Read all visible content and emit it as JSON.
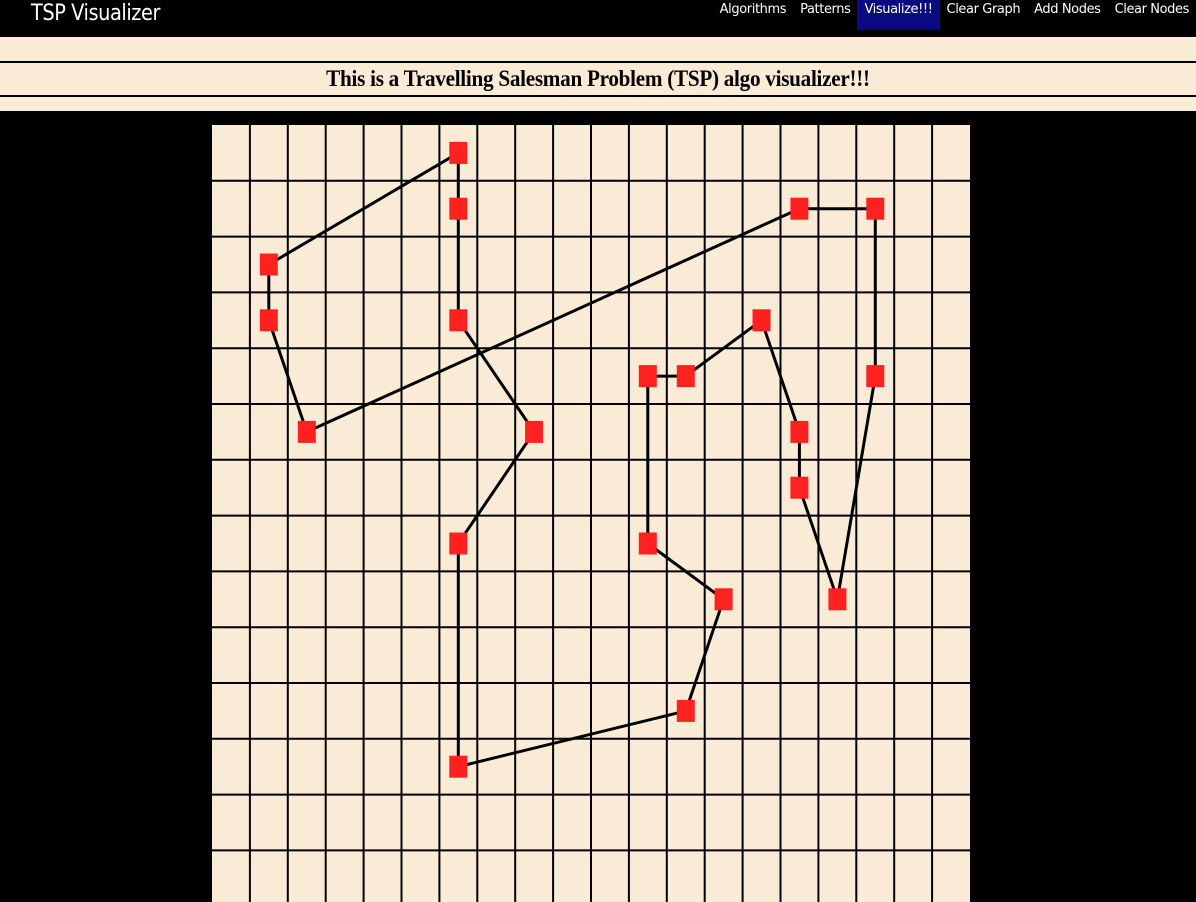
{
  "navbar": {
    "brand": "TSP Visualizer",
    "links": [
      {
        "label": "Algorithms"
      },
      {
        "label": "Patterns"
      },
      {
        "label": "Visualize!!!",
        "active": true
      },
      {
        "label": "Clear Graph"
      },
      {
        "label": "Add Nodes"
      },
      {
        "label": "Clear Nodes"
      }
    ]
  },
  "banner": {
    "title": "This is a Travelling Salesman Problem (TSP) algo visualizer!!!"
  },
  "grid": {
    "columns": 20,
    "visible_rows": 14,
    "cell_color": "#faebd7",
    "line_color": "#000000",
    "node_color": "#ff2020",
    "path_color": "#000000",
    "nodes": [
      {
        "col": 6,
        "row": 0
      },
      {
        "col": 6,
        "row": 1
      },
      {
        "col": 6,
        "row": 3
      },
      {
        "col": 8,
        "row": 5
      },
      {
        "col": 6,
        "row": 7
      },
      {
        "col": 6,
        "row": 11
      },
      {
        "col": 12,
        "row": 10
      },
      {
        "col": 13,
        "row": 8
      },
      {
        "col": 11,
        "row": 7
      },
      {
        "col": 11,
        "row": 4
      },
      {
        "col": 12,
        "row": 4
      },
      {
        "col": 14,
        "row": 3
      },
      {
        "col": 15,
        "row": 5
      },
      {
        "col": 15,
        "row": 6
      },
      {
        "col": 16,
        "row": 8
      },
      {
        "col": 17,
        "row": 4
      },
      {
        "col": 17,
        "row": 1
      },
      {
        "col": 15,
        "row": 1
      },
      {
        "col": 2,
        "row": 5
      },
      {
        "col": 1,
        "row": 3
      },
      {
        "col": 1,
        "row": 2
      }
    ],
    "tour": [
      0,
      1,
      2,
      3,
      4,
      5,
      6,
      7,
      8,
      9,
      10,
      11,
      12,
      13,
      14,
      15,
      16,
      17,
      18,
      19,
      20,
      0
    ]
  }
}
